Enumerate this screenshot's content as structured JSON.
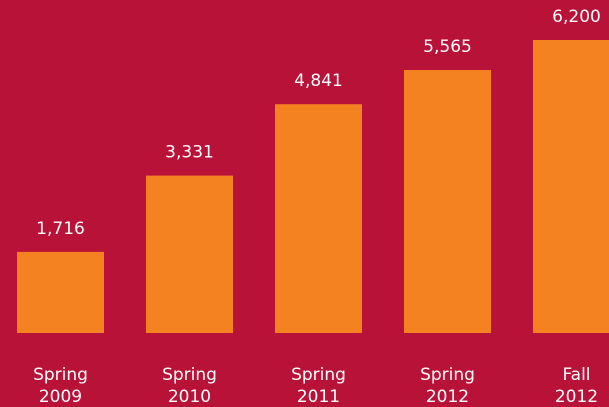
{
  "chart_data": {
    "type": "bar",
    "categories": [
      "Spring 2009",
      "Spring 2010",
      "Spring 2011",
      "Spring 2012",
      "Fall 2012"
    ],
    "values": [
      1716,
      3331,
      4841,
      5565,
      6200
    ],
    "value_labels": [
      "1,716",
      "3,331",
      "4,841",
      "5,565",
      "6,200"
    ],
    "color": "#f58220",
    "background": "#b81238"
  }
}
